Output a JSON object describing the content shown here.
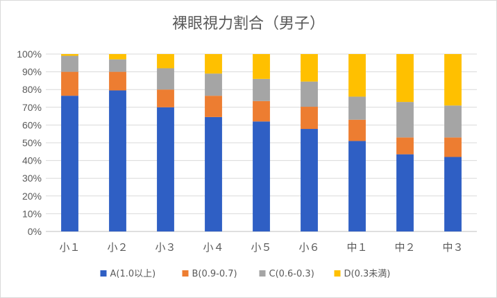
{
  "chart_data": {
    "type": "bar",
    "stacked": true,
    "title": "裸眼視力割合（男子）",
    "xlabel": "",
    "ylabel": "",
    "ylim": [
      0,
      100
    ],
    "y_ticks": [
      "0%",
      "10%",
      "20%",
      "30%",
      "40%",
      "50%",
      "60%",
      "70%",
      "80%",
      "90%",
      "100%"
    ],
    "categories": [
      "小１",
      "小２",
      "小３",
      "小４",
      "小５",
      "小６",
      "中１",
      "中２",
      "中３"
    ],
    "series": [
      {
        "name": "A(1.0以上)",
        "color": "#2f5fc4",
        "values": [
          76.5,
          79.5,
          70.0,
          64.5,
          62.0,
          57.8,
          51.0,
          43.5,
          42.0
        ]
      },
      {
        "name": "B(0.9-0.7)",
        "color": "#ed7d31",
        "values": [
          13.5,
          10.5,
          10.0,
          12.0,
          11.5,
          12.5,
          12.0,
          9.5,
          11.0
        ]
      },
      {
        "name": "C(0.6-0.3)",
        "color": "#a5a5a5",
        "values": [
          9.0,
          7.0,
          12.0,
          12.5,
          12.5,
          14.2,
          13.0,
          20.0,
          18.0
        ]
      },
      {
        "name": "D(0.3未満)",
        "color": "#ffc000",
        "values": [
          1.0,
          3.0,
          8.0,
          11.0,
          14.0,
          15.5,
          24.0,
          27.0,
          29.0
        ]
      }
    ],
    "legend_position": "bottom",
    "grid": true
  }
}
